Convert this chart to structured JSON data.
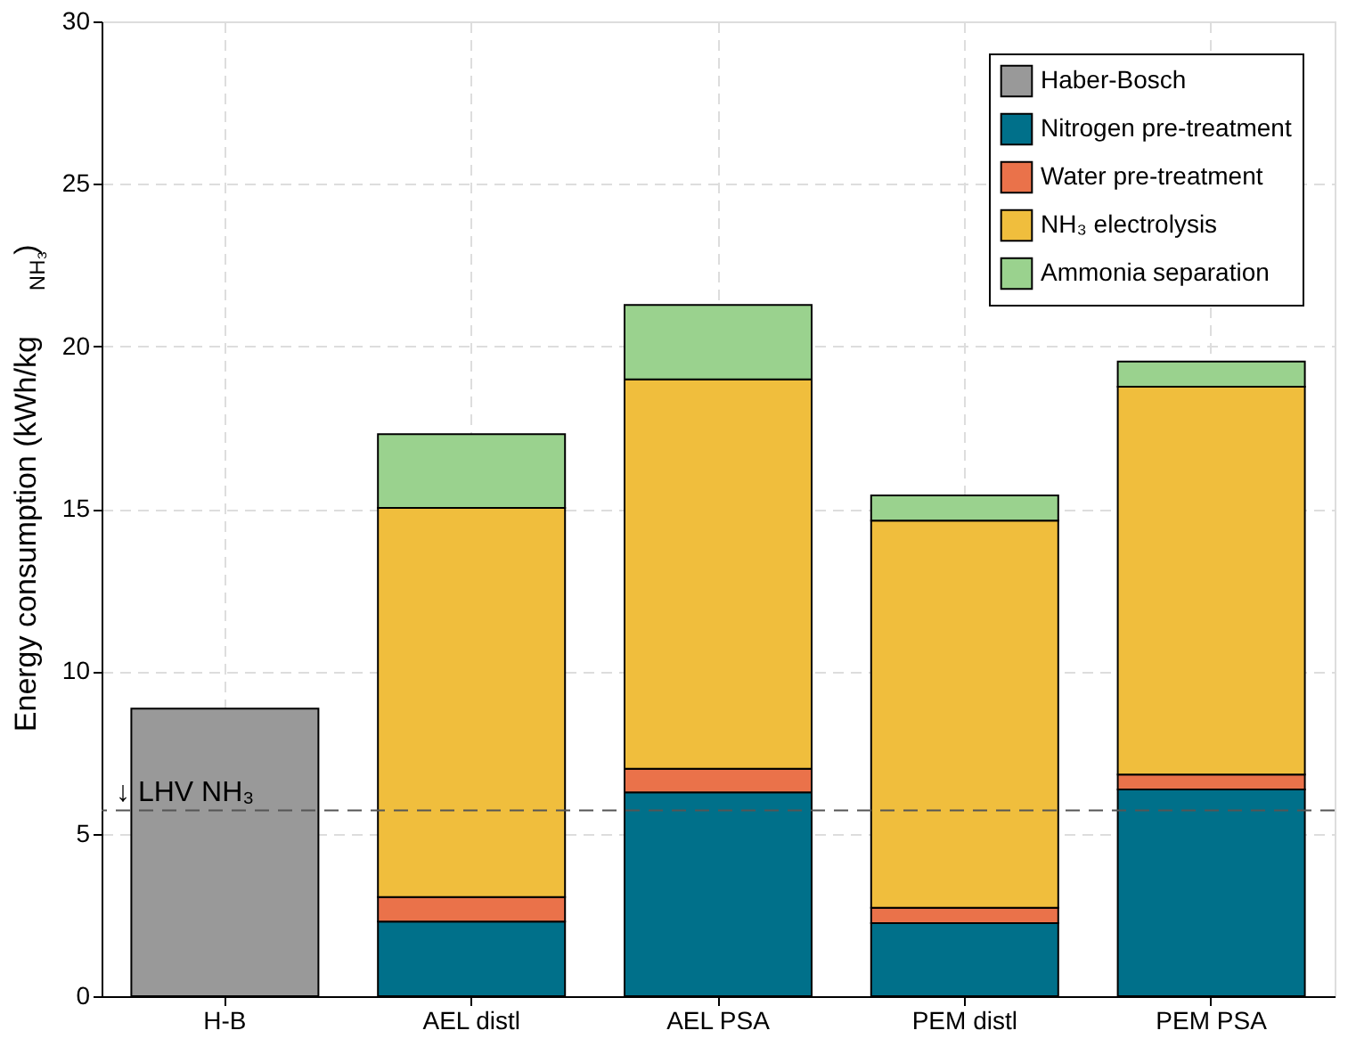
{
  "chart_data": {
    "type": "bar",
    "stacked": true,
    "ylabel": "Energy consumption (kWh/kg$_{NH₃}$)",
    "categories": [
      "H-B",
      "AEL distl",
      "AEL PSA",
      "PEM distl",
      "PEM PSA"
    ],
    "series": [
      {
        "name": "Haber-Bosch",
        "color": "#999999",
        "values": [
          8.85,
          null,
          null,
          null,
          null
        ]
      },
      {
        "name": "Nitrogen pre-treatment",
        "color": "#00708a",
        "values": [
          null,
          2.3,
          6.27,
          2.25,
          6.36
        ]
      },
      {
        "name": "Water pre-treatment",
        "color": "#ea724a",
        "values": [
          null,
          0.75,
          0.73,
          0.47,
          0.46
        ]
      },
      {
        "name": "NH₃ electrolysis",
        "color": "#f0be3d",
        "values": [
          null,
          11.98,
          11.98,
          11.92,
          11.94
        ]
      },
      {
        "name": "Ammonia separation",
        "color": "#9ad28e",
        "values": [
          null,
          2.27,
          2.29,
          0.77,
          0.77
        ]
      }
    ],
    "ylim": [
      0,
      30
    ],
    "yticks": [
      0,
      5,
      10,
      15,
      20,
      25,
      30
    ],
    "grid": true,
    "legend": "top right",
    "ref_lines": [
      {
        "axis": "y",
        "value": 5.72,
        "label": "↓ LHV NH₃",
        "color": "#555555",
        "line_style": "dashed"
      }
    ]
  }
}
